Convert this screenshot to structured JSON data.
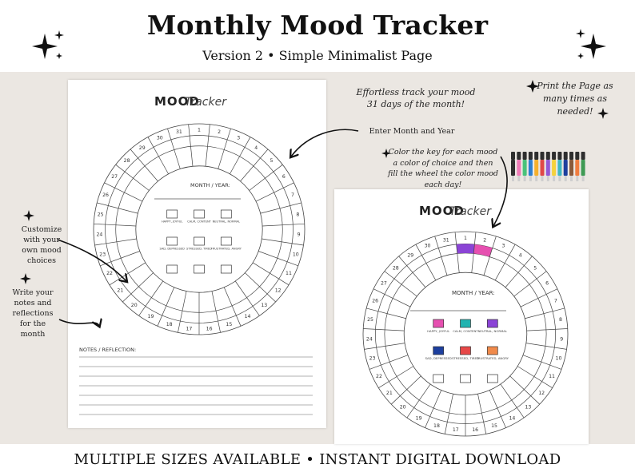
{
  "header": {
    "title": "Monthly Mood Tracker",
    "subtitle": "Version 2 • Simple Minimalist Page"
  },
  "footer": {
    "text": "MULTIPLE SIZES AVAILABLE • INSTANT DIGITAL DOWNLOAD"
  },
  "notes": {
    "effortless": "Effortless track your mood 31 days of the month!",
    "print": "Print the Page as many times as needed!",
    "enter_month": "Enter Month and Year",
    "color_key": "Color the key for each mood a color of choice and then fill the wheel  the color mood each day!",
    "customize": "Customize with your own mood choices",
    "write_notes": "Write your notes and reflections for the month"
  },
  "sheet": {
    "title_a": "MOOD",
    "title_b": "Tracker",
    "month_year_label": "MONTH / YEAR:",
    "notes_label": "NOTES / REFLECTION:",
    "mood_labels": [
      "HAPPY, JOYFUL",
      "CALM, CONTENT",
      "NEUTRAL, NORMAL",
      "SAD, DEPRESSED",
      "STRESSED, TIRED",
      "FRUSTRATED, ANGRY"
    ]
  },
  "days": [
    "1",
    "2",
    "3",
    "4",
    "5",
    "6",
    "7",
    "8",
    "9",
    "10",
    "11",
    "12",
    "13",
    "14",
    "15",
    "16",
    "17",
    "18",
    "19",
    "20",
    "21",
    "22",
    "23",
    "24",
    "25",
    "26",
    "27",
    "28",
    "29",
    "30",
    "31"
  ],
  "colors": {
    "background": "#ebe7e2",
    "happy": "#e64fb0",
    "calm": "#21b3b0",
    "neutral": "#8b44d6",
    "sad": "#1d3f9e",
    "stressed": "#e74848",
    "frustrated": "#f08a4b",
    "day1_fill": "#8b44d6",
    "day2_fill": "#e64fb0"
  },
  "markers": {
    "colors": [
      "#2f2f2f",
      "#f07bb8",
      "#49c27a",
      "#2e7fd1",
      "#f6b02d",
      "#e04848",
      "#9357d6",
      "#f5d23c",
      "#3fb8c2",
      "#1d3f9e",
      "#8a5a3a",
      "#f07c3e",
      "#3e9a54"
    ]
  },
  "icons": [
    "sparkle-icon",
    "arrow-icon",
    "marker-icon"
  ]
}
